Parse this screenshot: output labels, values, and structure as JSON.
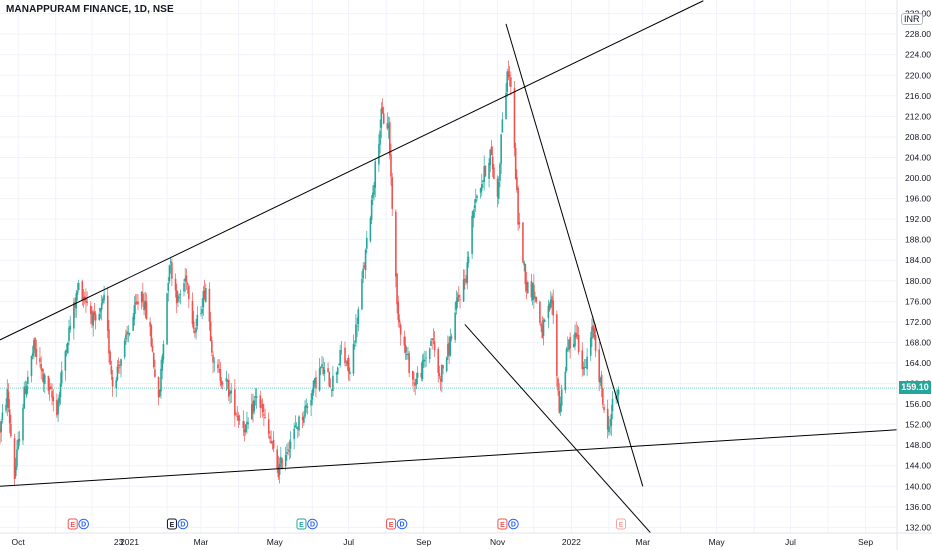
{
  "title": "MANAPPURAM FINANCE, 1D, NSE",
  "currency": "INR",
  "last_price": "159.10",
  "colors": {
    "up": "#26a69a",
    "down": "#ef5350",
    "trendline": "#000000",
    "grid": "#f0f3fa",
    "axis_text": "#131722"
  },
  "chart_data": {
    "type": "candlestick",
    "title": "MANAPPURAM FINANCE, 1D, NSE",
    "ylabel": "",
    "ylim": [
      130,
      234
    ],
    "y_ticks": [
      "132.00",
      "136.00",
      "140.00",
      "144.00",
      "148.00",
      "152.00",
      "156.00",
      "160.00",
      "164.00",
      "168.00",
      "172.00",
      "176.00",
      "180.00",
      "184.00",
      "188.00",
      "192.00",
      "196.00",
      "200.00",
      "204.00",
      "208.00",
      "212.00",
      "216.00",
      "220.00",
      "224.00",
      "228.00",
      "232.00"
    ],
    "x_ticks": [
      "Oct",
      "23",
      "2021",
      "Mar",
      "May",
      "Jul",
      "Sep",
      "Nov",
      "2022",
      "Mar",
      "May",
      "Jul",
      "Sep"
    ],
    "x_range": [
      "2020-09-16",
      "2022-09-27"
    ],
    "last_price": 159.1,
    "price_path": [
      [
        "2020-09-16",
        151
      ],
      [
        "2020-09-22",
        158
      ],
      [
        "2020-09-28",
        142
      ],
      [
        "2020-10-06",
        158
      ],
      [
        "2020-10-14",
        167
      ],
      [
        "2020-10-22",
        161
      ],
      [
        "2020-11-02",
        155
      ],
      [
        "2020-11-10",
        168
      ],
      [
        "2020-11-20",
        179
      ],
      [
        "2020-11-27",
        176
      ],
      [
        "2020-12-04",
        171
      ],
      [
        "2020-12-11",
        176
      ],
      [
        "2020-12-18",
        160
      ],
      [
        "2020-12-25",
        165
      ],
      [
        "2021-01-04",
        173
      ],
      [
        "2021-01-11",
        178
      ],
      [
        "2021-01-18",
        170
      ],
      [
        "2021-01-25",
        156
      ],
      [
        "2021-02-03",
        184
      ],
      [
        "2021-02-10",
        176
      ],
      [
        "2021-02-17",
        181
      ],
      [
        "2021-02-24",
        170
      ],
      [
        "2021-03-05",
        179
      ],
      [
        "2021-03-12",
        163
      ],
      [
        "2021-03-22",
        160
      ],
      [
        "2021-03-31",
        154
      ],
      [
        "2021-04-08",
        151
      ],
      [
        "2021-04-16",
        158
      ],
      [
        "2021-04-26",
        150
      ],
      [
        "2021-05-04",
        143
      ],
      [
        "2021-05-12",
        148
      ],
      [
        "2021-05-20",
        152
      ],
      [
        "2021-05-28",
        156
      ],
      [
        "2021-06-08",
        163
      ],
      [
        "2021-06-17",
        160
      ],
      [
        "2021-06-25",
        166
      ],
      [
        "2021-07-02",
        162
      ],
      [
        "2021-07-09",
        174
      ],
      [
        "2021-07-16",
        187
      ],
      [
        "2021-07-22",
        200
      ],
      [
        "2021-07-28",
        212
      ],
      [
        "2021-08-03",
        210
      ],
      [
        "2021-08-10",
        175
      ],
      [
        "2021-08-16",
        167
      ],
      [
        "2021-08-24",
        160
      ],
      [
        "2021-08-31",
        163
      ],
      [
        "2021-09-08",
        169
      ],
      [
        "2021-09-14",
        161
      ],
      [
        "2021-09-22",
        167
      ],
      [
        "2021-09-29",
        176
      ],
      [
        "2021-10-06",
        181
      ],
      [
        "2021-10-13",
        196
      ],
      [
        "2021-10-20",
        200
      ],
      [
        "2021-10-26",
        205
      ],
      [
        "2021-11-01",
        196
      ],
      [
        "2021-11-05",
        212
      ],
      [
        "2021-11-10",
        221
      ],
      [
        "2021-11-12",
        218
      ],
      [
        "2021-11-18",
        192
      ],
      [
        "2021-11-25",
        179
      ],
      [
        "2021-12-01",
        178
      ],
      [
        "2021-12-08",
        170
      ],
      [
        "2021-12-16",
        176
      ],
      [
        "2021-12-22",
        155
      ],
      [
        "2021-12-29",
        167
      ],
      [
        "2022-01-05",
        170
      ],
      [
        "2022-01-12",
        162
      ],
      [
        "2022-01-19",
        171
      ],
      [
        "2022-01-25",
        160
      ],
      [
        "2022-01-31",
        150
      ],
      [
        "2022-02-04",
        156
      ],
      [
        "2022-02-09",
        159.1
      ]
    ],
    "trendlines": [
      {
        "from": [
          "2020-09-16",
          168.5
        ],
        "to": [
          "2022-04-20",
          234.5
        ]
      },
      {
        "from": [
          "2020-09-16",
          140.0
        ],
        "to": [
          "2022-09-27",
          151.0
        ]
      },
      {
        "from": [
          "2021-11-08",
          230.0
        ],
        "to": [
          "2022-03-01",
          140.0
        ]
      },
      {
        "from": [
          "2021-10-05",
          171.5
        ],
        "to": [
          "2022-03-11",
          130.0
        ]
      }
    ],
    "events": [
      {
        "date": "2020-11-20",
        "letters": [
          "E",
          "D"
        ],
        "e_color": "#ef5350"
      },
      {
        "date": "2021-02-10",
        "letters": [
          "E",
          "D"
        ],
        "e_color": "#131722"
      },
      {
        "date": "2021-05-28",
        "letters": [
          "E",
          "D"
        ],
        "e_color": "#26a69a"
      },
      {
        "date": "2021-08-10",
        "letters": [
          "E",
          "D"
        ],
        "e_color": "#ef5350"
      },
      {
        "date": "2021-11-10",
        "letters": [
          "E",
          "D"
        ],
        "e_color": "#ef5350"
      },
      {
        "date": "2022-02-11",
        "letters": [
          "E"
        ],
        "e_color": "#f5a5a5"
      }
    ]
  }
}
